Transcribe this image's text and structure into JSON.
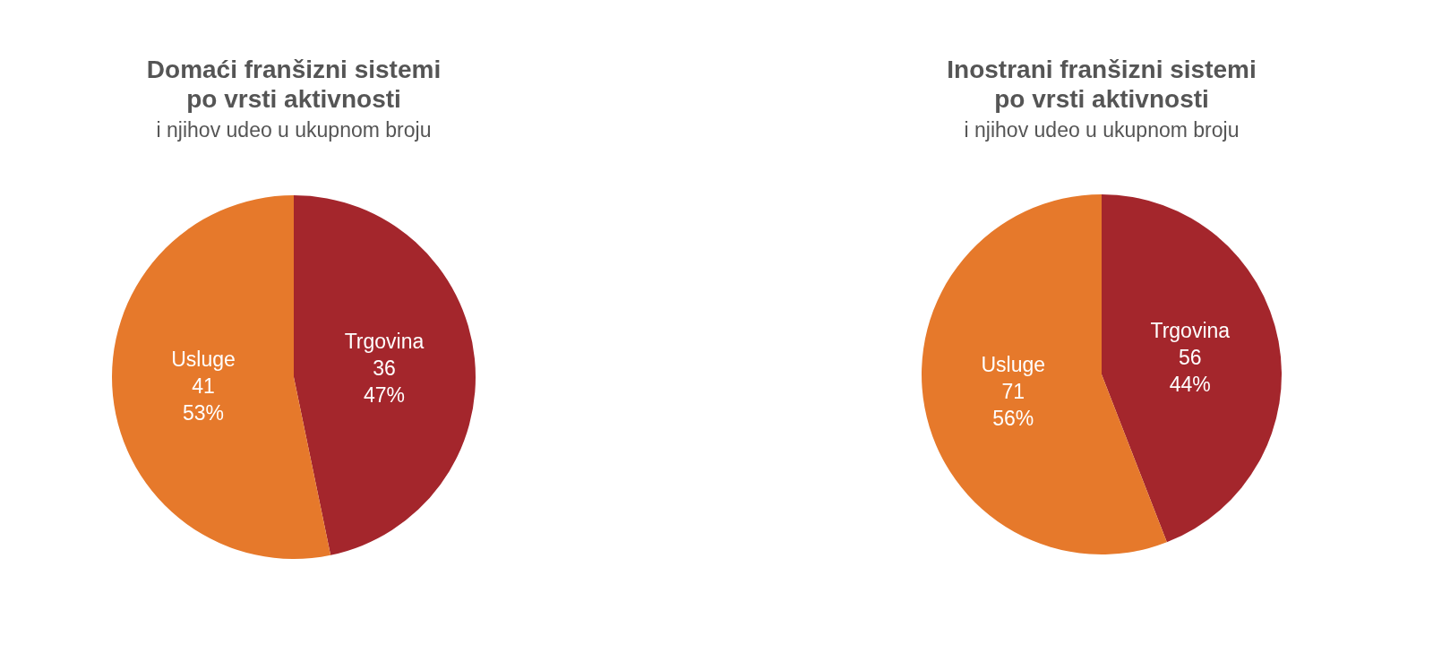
{
  "chart_data": [
    {
      "type": "pie",
      "title": "Domaći franšizni sistemi\npo vrsti aktivnosti",
      "subtitle": "i njihov udeo u ukupnom broju",
      "categories": [
        "Trgovina",
        "Usluge"
      ],
      "values": [
        36,
        41
      ],
      "colors": [
        "#a4262c",
        "#e6792b"
      ],
      "value_labels": [
        "36\n47%",
        "41\n53%"
      ]
    },
    {
      "type": "pie",
      "title": "Inostrani franšizni sistemi\npo vrsti aktivnosti",
      "subtitle": "i njihov udeo u ukupnom broju",
      "categories": [
        "Trgovina",
        "Usluge"
      ],
      "values": [
        56,
        71
      ],
      "colors": [
        "#a4262c",
        "#e6792b"
      ],
      "value_labels": [
        "56\n44%",
        "71\n56%"
      ]
    }
  ]
}
